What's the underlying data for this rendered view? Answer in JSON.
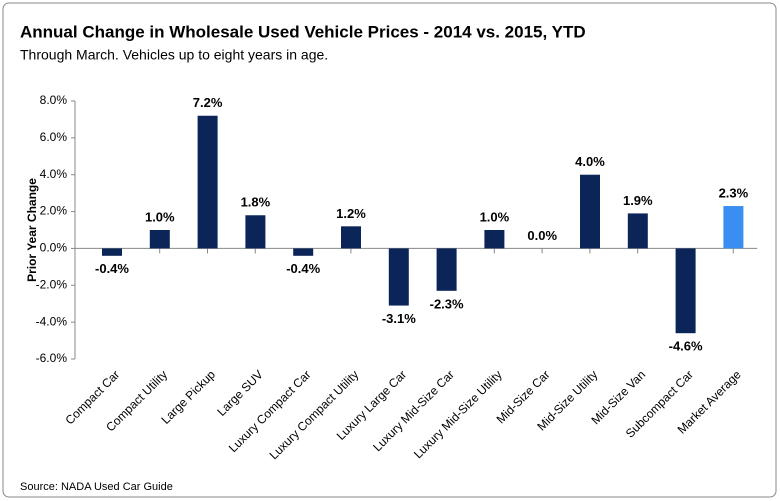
{
  "chart_data": {
    "type": "bar",
    "title": "Annual Change in Wholesale Used Vehicle Prices - 2014 vs. 2015, YTD",
    "subtitle": "Through March. Vehicles up to eight years in age.",
    "y_label": "Prior Year Change",
    "source": "Source:  NADA Used Car Guide",
    "categories": [
      "Compact Car",
      "Compact Utility",
      "Large Pickup",
      "Large SUV",
      "Luxury Compact Car",
      "Luxury Compact Utility",
      "Luxury Large Car",
      "Luxury Mid-Size Car",
      "Luxury Mid-Size Utility",
      "Mid-Size Car",
      "Mid-Size Utility",
      "Mid-Size Van",
      "Subcompact Car",
      "Market Average"
    ],
    "values": [
      -0.4,
      1.0,
      7.2,
      1.8,
      -0.4,
      1.2,
      -3.1,
      -2.3,
      1.0,
      0.0,
      4.0,
      1.9,
      -4.6,
      2.3
    ],
    "value_labels": [
      "-0.4%",
      "1.0%",
      "7.2%",
      "1.8%",
      "-0.4%",
      "1.2%",
      "-3.1%",
      "-2.3%",
      "1.0%",
      "0.0%",
      "4.0%",
      "1.9%",
      "-4.6%",
      "2.3%"
    ],
    "colors": [
      "#0b2559",
      "#0b2559",
      "#0b2559",
      "#0b2559",
      "#0b2559",
      "#0b2559",
      "#0b2559",
      "#0b2559",
      "#0b2559",
      "#0b2559",
      "#0b2559",
      "#0b2559",
      "#0b2559",
      "#3a8ef2"
    ],
    "ylim": [
      -6,
      8
    ],
    "yticks": [
      {
        "value": -6,
        "label": "-6.0%"
      },
      {
        "value": -4,
        "label": "-4.0%"
      },
      {
        "value": -2,
        "label": "-2.0%"
      },
      {
        "value": 0,
        "label": "0.0%"
      },
      {
        "value": 2,
        "label": "2.0%"
      },
      {
        "value": 4,
        "label": "4.0%"
      },
      {
        "value": 6,
        "label": "6.0%"
      },
      {
        "value": 8,
        "label": "8.0%"
      }
    ],
    "grid": false
  }
}
